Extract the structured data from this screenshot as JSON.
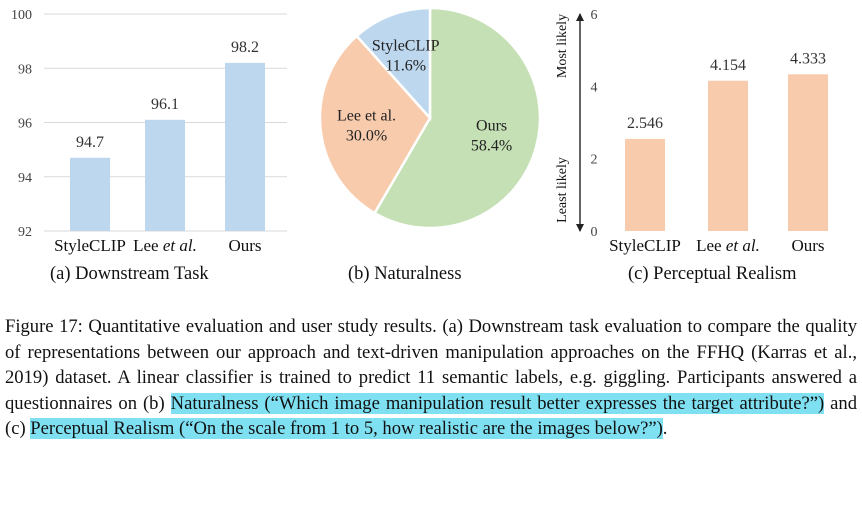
{
  "colors": {
    "bar_a": "#bdd7ee",
    "bar_c": "#f8cbad",
    "pie_styleclip": "#bdd7ee",
    "pie_lee": "#f8cbad",
    "pie_ours": "#c5e0b4",
    "highlight": "#7fe0f2"
  },
  "chart_data": [
    {
      "type": "bar",
      "categories": [
        "StyleCLIP",
        "Lee et al.",
        "Ours"
      ],
      "category_labels": {
        "StyleCLIP": "StyleCLIP",
        "Lee_pre": "Lee ",
        "Lee_em": "et al.",
        "Ours": "Ours"
      },
      "values": [
        94.7,
        96.1,
        98.2
      ],
      "value_labels": [
        "94.7",
        "96.1",
        "98.2"
      ],
      "ylim": [
        92,
        100
      ],
      "yticks": [
        92,
        94,
        96,
        98,
        100
      ],
      "grid": true,
      "caption": "(a) Downstream Task"
    },
    {
      "type": "pie",
      "labels": [
        "Ours",
        "Lee et al.",
        "StyleCLIP"
      ],
      "values": [
        58.4,
        30.0,
        11.6
      ],
      "value_labels": [
        "58.4%",
        "30.0%",
        "11.6%"
      ],
      "caption": "(b) Naturalness"
    },
    {
      "type": "bar",
      "categories": [
        "StyleCLIP",
        "Lee et al.",
        "Ours"
      ],
      "values": [
        2.546,
        4.154,
        4.333
      ],
      "value_labels": [
        "2.546",
        "4.154",
        "4.333"
      ],
      "ylim": [
        0,
        6
      ],
      "yticks": [
        0,
        2,
        4,
        6
      ],
      "ylabel_top": "Most likely",
      "ylabel_bottom": "Least likely",
      "grid": false,
      "caption": "(c) Perceptual Realism"
    }
  ],
  "caption": {
    "part1": "Figure 17: Quantitative evaluation and user study results. (a) Downstream task evaluation to compare the quality of representations between our approach and text-driven manipulation approaches on the FFHQ (Karras et al., 2019) dataset. A linear classifier is trained to predict 11 semantic labels, e.g. giggling. Participants answered a questionnaires on (b) ",
    "highlight1": "Naturalness (“Which image manipulation result better expresses the target attribute?”)",
    "part2": " and (c) ",
    "highlight2": "Perceptual Realism (“On the scale from 1 to 5, how realistic are the images below?”)",
    "part3": "."
  }
}
